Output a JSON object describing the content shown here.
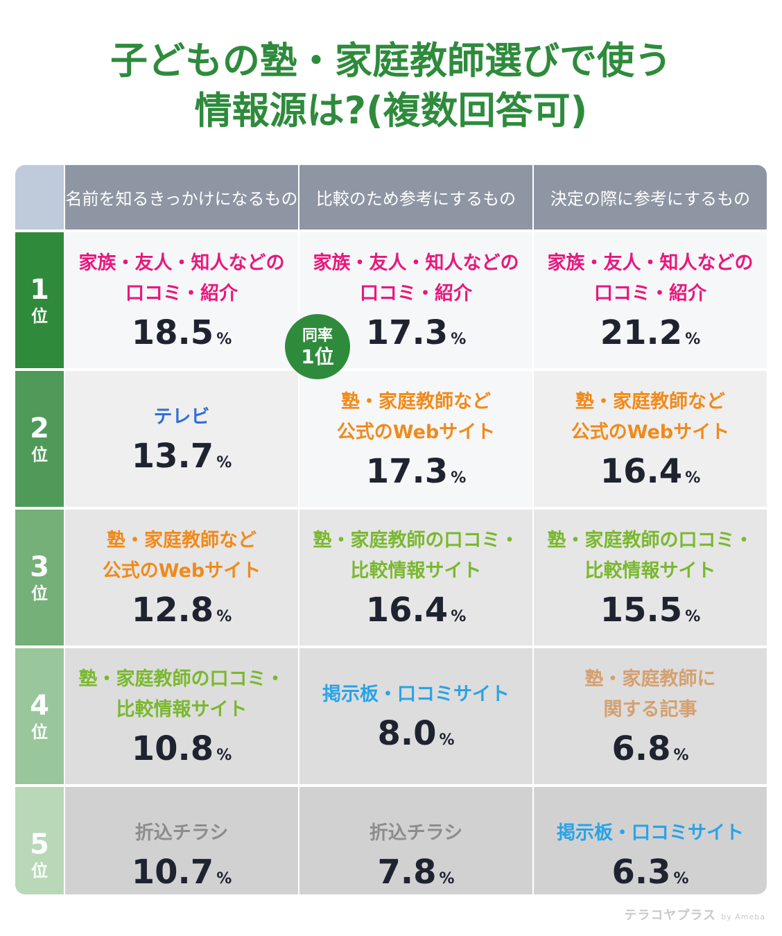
{
  "title_lines": [
    "子どもの塾・家庭教師選びで使う",
    "情報源は?(複数回答可)"
  ],
  "badge": {
    "line1": "同率",
    "line2": "1位"
  },
  "logo": {
    "text": "テラコヤプラス",
    "suffix": "by Ameba"
  },
  "colors": {
    "title": "#2e8b3c",
    "family_friends": "#e8177d",
    "tv": "#2f6fd6",
    "official_web": "#f08a1a",
    "review_comparison": "#7ab82f",
    "bulletin_board": "#2aa3e6",
    "flyer": "#8c8c8c",
    "articles": "#d4a070"
  },
  "chart_data": {
    "type": "table",
    "unit": "%",
    "columns": [
      "名前を知るきっかけになるもの",
      "比較のため参考にするもの",
      "決定の際に参考にするもの"
    ],
    "ranks": [
      {
        "num": "1",
        "unit": "位"
      },
      {
        "num": "2",
        "unit": "位"
      },
      {
        "num": "3",
        "unit": "位"
      },
      {
        "num": "4",
        "unit": "位"
      },
      {
        "num": "5",
        "unit": "位"
      }
    ],
    "rows": [
      [
        {
          "label": [
            "家族・友人・知人などの",
            "口コミ・紹介"
          ],
          "value": "18.5",
          "color_key": "family_friends"
        },
        {
          "label": [
            "家族・友人・知人などの",
            "口コミ・紹介"
          ],
          "value": "17.3",
          "color_key": "family_friends"
        },
        {
          "label": [
            "家族・友人・知人などの",
            "口コミ・紹介"
          ],
          "value": "21.2",
          "color_key": "family_friends"
        }
      ],
      [
        {
          "label": [
            "テレビ"
          ],
          "value": "13.7",
          "color_key": "tv"
        },
        {
          "label": [
            "塾・家庭教師など",
            "公式のWebサイト"
          ],
          "value": "17.3",
          "color_key": "official_web"
        },
        {
          "label": [
            "塾・家庭教師など",
            "公式のWebサイト"
          ],
          "value": "16.4",
          "color_key": "official_web"
        }
      ],
      [
        {
          "label": [
            "塾・家庭教師など",
            "公式のWebサイト"
          ],
          "value": "12.8",
          "color_key": "official_web"
        },
        {
          "label": [
            "塾・家庭教師の口コミ・",
            "比較情報サイト"
          ],
          "value": "16.4",
          "color_key": "review_comparison"
        },
        {
          "label": [
            "塾・家庭教師の口コミ・",
            "比較情報サイト"
          ],
          "value": "15.5",
          "color_key": "review_comparison"
        }
      ],
      [
        {
          "label": [
            "塾・家庭教師の口コミ・",
            "比較情報サイト"
          ],
          "value": "10.8",
          "color_key": "review_comparison"
        },
        {
          "label": [
            "掲示板・口コミサイト"
          ],
          "value": "8.0",
          "color_key": "bulletin_board"
        },
        {
          "label": [
            "塾・家庭教師に",
            "関する記事"
          ],
          "value": "6.8",
          "color_key": "articles"
        }
      ],
      [
        {
          "label": [
            "折込チラシ"
          ],
          "value": "10.7",
          "color_key": "flyer"
        },
        {
          "label": [
            "折込チラシ"
          ],
          "value": "7.8",
          "color_key": "flyer"
        },
        {
          "label": [
            "掲示板・口コミサイト"
          ],
          "value": "6.3",
          "color_key": "bulletin_board"
        }
      ]
    ]
  }
}
